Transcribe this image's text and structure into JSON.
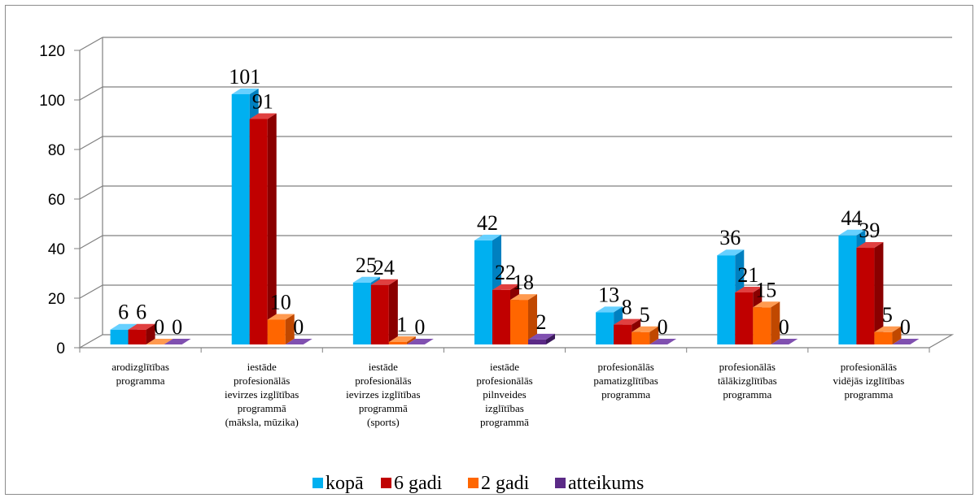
{
  "chart_data": {
    "type": "bar",
    "title": "",
    "xlabel": "",
    "ylabel": "",
    "ylim": [
      0,
      120
    ],
    "yticks": [
      "0",
      "20",
      "40",
      "60",
      "80",
      "100",
      "120"
    ],
    "grid": true,
    "legend_position": "bottom",
    "categories": [
      [
        "arodizglītības",
        "programma"
      ],
      [
        "iestāde",
        "profesionālās",
        "ievirzes izglītības",
        "programmā",
        "(māksla, mūzika)"
      ],
      [
        "iestāde",
        "profesionālās",
        "ievirzes izglītības",
        "programmā",
        "(sports)"
      ],
      [
        "iestāde",
        "profesionālās",
        "pilnveides",
        "izglītības",
        "programmā"
      ],
      [
        "profesionālās",
        "pamatizglītības",
        "programma"
      ],
      [
        "profesionālās",
        "tālākizglītības",
        "programma"
      ],
      [
        "profesionālās",
        "vidējās izglītības",
        "programma"
      ]
    ],
    "series": [
      {
        "name": "kopā",
        "color": "#00b0f0",
        "side": "#0080c0",
        "top": "#66d0ff",
        "values": [
          6,
          101,
          25,
          42,
          13,
          36,
          44
        ]
      },
      {
        "name": "6 gadi",
        "color": "#c00000",
        "side": "#8a0000",
        "top": "#e04040",
        "values": [
          6,
          91,
          24,
          22,
          8,
          21,
          39
        ]
      },
      {
        "name": "2 gadi",
        "color": "#ff6600",
        "side": "#c04800",
        "top": "#ff9a50",
        "values": [
          0,
          10,
          1,
          18,
          5,
          15,
          5
        ]
      },
      {
        "name": "atteikums",
        "color": "#5b2a86",
        "side": "#3c1a5c",
        "top": "#8050b0",
        "values": [
          0,
          0,
          0,
          2,
          0,
          0,
          0
        ]
      }
    ]
  }
}
